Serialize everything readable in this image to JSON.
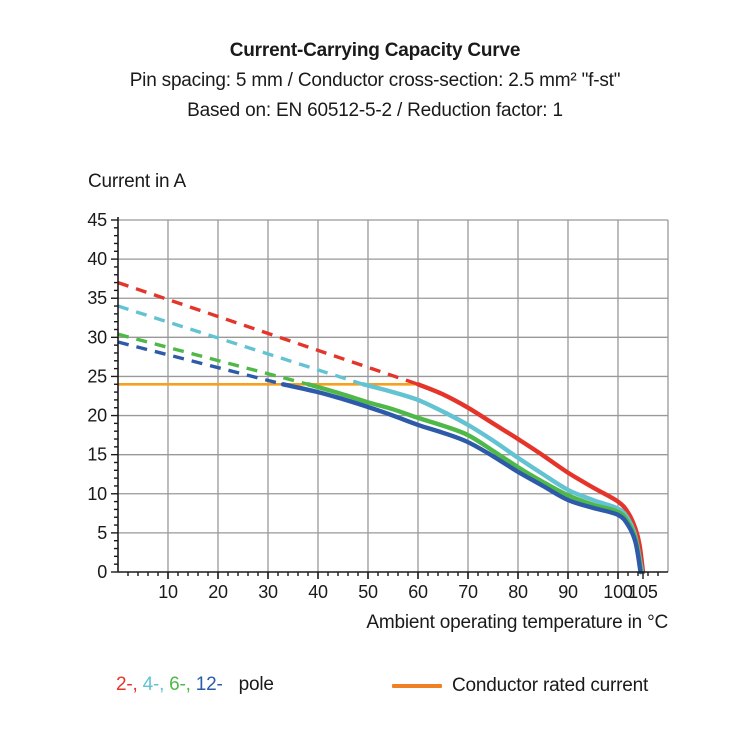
{
  "header": {
    "title": "Current-Carrying Capacity Curve",
    "subtitle1": "Pin spacing: 5 mm / Conductor cross-section: 2.5 mm² \"f-st\"",
    "subtitle2": "Based on: EN 60512-5-2 / Reduction factor: 1"
  },
  "chart_data": {
    "type": "line",
    "title": "Current-Carrying Capacity Curve",
    "xlabel": "Ambient operating temperature in °C",
    "ylabel": "Current in A",
    "xlim": [
      0,
      110
    ],
    "ylim": [
      0,
      45
    ],
    "x_major_ticks": [
      10,
      20,
      30,
      40,
      50,
      60,
      70,
      80,
      90,
      100,
      105
    ],
    "x_minor_step": 2,
    "y_major_step": 5,
    "y_minor_step": 1,
    "grid": true,
    "grid_color": "#999999",
    "axis_color": "#1a1a1a",
    "legend_position": "bottom",
    "rated_current": {
      "label": "Conductor rated current",
      "value_a": 24,
      "x_start": 0,
      "x_end": 60,
      "color": "#f7a01d"
    },
    "series": [
      {
        "name": "2-pole",
        "color": "#e5352b",
        "dashed": [
          [
            0,
            37
          ],
          [
            60,
            24
          ]
        ],
        "solid": [
          [
            60,
            24
          ],
          [
            65,
            22.7
          ],
          [
            70,
            21
          ],
          [
            75,
            19
          ],
          [
            80,
            17
          ],
          [
            85,
            14.9
          ],
          [
            90,
            12.7
          ],
          [
            95,
            10.8
          ],
          [
            100,
            9
          ],
          [
            102,
            7.6
          ],
          [
            103.5,
            5.5
          ],
          [
            104.3,
            3.5
          ],
          [
            105,
            0
          ]
        ]
      },
      {
        "name": "4-pole",
        "color": "#64c3d2",
        "dashed": [
          [
            0,
            34
          ],
          [
            49,
            24
          ]
        ],
        "solid": [
          [
            49,
            24
          ],
          [
            55,
            23
          ],
          [
            60,
            22
          ],
          [
            65,
            20.5
          ],
          [
            70,
            18.8
          ],
          [
            75,
            16.8
          ],
          [
            80,
            14.6
          ],
          [
            85,
            12.5
          ],
          [
            90,
            10.5
          ],
          [
            95,
            9.2
          ],
          [
            100,
            8.1
          ],
          [
            102,
            6.8
          ],
          [
            103.5,
            4.5
          ],
          [
            104.8,
            0
          ]
        ]
      },
      {
        "name": "6-pole",
        "color": "#4eb848",
        "dashed": [
          [
            0,
            30.4
          ],
          [
            38,
            24
          ]
        ],
        "solid": [
          [
            38,
            24
          ],
          [
            44,
            22.9
          ],
          [
            50,
            21.7
          ],
          [
            55,
            20.8
          ],
          [
            60,
            19.7
          ],
          [
            65,
            18.7
          ],
          [
            70,
            17.5
          ],
          [
            75,
            15.5
          ],
          [
            80,
            13.4
          ],
          [
            85,
            11.5
          ],
          [
            90,
            9.8
          ],
          [
            95,
            8.6
          ],
          [
            100,
            7.7
          ],
          [
            102,
            6.4
          ],
          [
            103.5,
            4.2
          ],
          [
            104.6,
            0
          ]
        ]
      },
      {
        "name": "12-pole",
        "color": "#2d5ba9",
        "dashed": [
          [
            0,
            29.4
          ],
          [
            33,
            24
          ]
        ],
        "solid": [
          [
            33,
            24
          ],
          [
            40,
            23
          ],
          [
            45,
            22.1
          ],
          [
            50,
            21.1
          ],
          [
            55,
            20
          ],
          [
            60,
            18.8
          ],
          [
            65,
            17.8
          ],
          [
            70,
            16.6
          ],
          [
            75,
            14.8
          ],
          [
            80,
            12.8
          ],
          [
            85,
            11
          ],
          [
            90,
            9.2
          ],
          [
            95,
            8.2
          ],
          [
            100,
            7.3
          ],
          [
            102,
            6
          ],
          [
            103.5,
            3.8
          ],
          [
            104.5,
            0
          ]
        ]
      }
    ]
  },
  "legend": {
    "pole_items": [
      {
        "label": "2-,",
        "color": "#e5352b"
      },
      {
        "label": "4-,",
        "color": "#64c3d2"
      },
      {
        "label": "6-,",
        "color": "#4eb848"
      },
      {
        "label": "12-",
        "color": "#2d5ba9"
      }
    ],
    "pole_suffix": "pole",
    "rated_label": "Conductor rated current",
    "rated_color": "#ef8023"
  }
}
